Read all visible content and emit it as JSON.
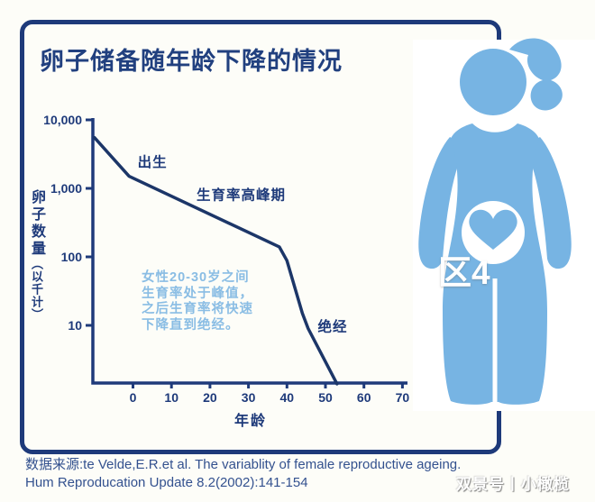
{
  "title": "卵子储备随年龄下降的情况",
  "chart_data": {
    "type": "line",
    "title": "卵子储备随年龄下降的情况",
    "xlabel": "年龄",
    "ylabel": "卵子数量（以千计）",
    "ylabel_main": "卵子数量",
    "ylabel_sub": "（以千计）",
    "y_scale": "log",
    "grid": false,
    "legend": "none",
    "x_ticks": [
      0,
      10,
      20,
      30,
      40,
      50,
      60,
      70
    ],
    "y_tick_values": [
      10000,
      1000,
      100,
      10
    ],
    "y_tick_labels": [
      "10,000",
      "1,000",
      "100",
      "10"
    ],
    "xlim": [
      -10.5,
      71
    ],
    "series": [
      {
        "name": "卵子数量(以千计)",
        "points": [
          [
            -10,
            5500
          ],
          [
            -1,
            1500
          ],
          [
            38,
            140
          ],
          [
            40,
            88
          ],
          [
            44,
            15
          ],
          [
            45.5,
            9
          ],
          [
            53,
            1.4
          ]
        ]
      }
    ],
    "annotations": [
      {
        "text": "出生",
        "age": 1.2,
        "value": 2400
      },
      {
        "text": "生育率高峰期",
        "age": 16.5,
        "value": 800
      },
      {
        "text": "绝经",
        "age": 48,
        "value": 9.5
      }
    ]
  },
  "note_lines": [
    "女性20-30岁之间",
    "生育率处于峰值，",
    "之后生育率将快速",
    "下降直到绝经。"
  ],
  "source": {
    "line1": "数据来源:te Velde,E.R.et al. The variablity of female reproductive ageing.",
    "line2": "Hum Reproducation Update 8.2(2002):141-154"
  },
  "watermarks": {
    "center": "区4",
    "publisher": "双景号丨小橄榄"
  },
  "icons": {
    "figure": "pregnant-woman-icon",
    "belly": "heart-icon"
  },
  "colors": {
    "navy": "#1e3a7a",
    "curve": "#1c3668",
    "figure_blue": "#77b4e3",
    "note_blue": "#8abde4",
    "source_blue": "#33518f",
    "background": "#fdfdf8",
    "white": "#ffffff"
  }
}
